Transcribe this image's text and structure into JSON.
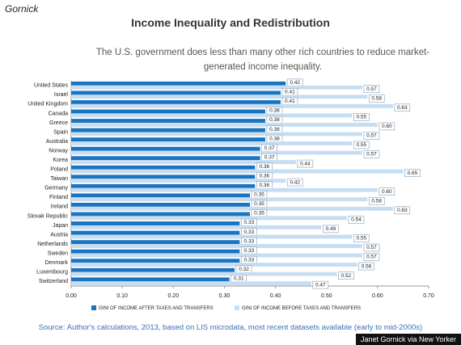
{
  "brand": "Gornick",
  "chart_data": {
    "type": "bar",
    "orientation": "horizontal",
    "title": "Income Inequality and Redistribution",
    "subtitle": "The U.S. government does less than many other rich countries to reduce market-generated income inequality.",
    "categories": [
      "United States",
      "Israel",
      "United Kingdom",
      "Canada",
      "Greece",
      "Spain",
      "Australia",
      "Norway",
      "Korea",
      "Poland",
      "Taiwan",
      "Germany",
      "Finland",
      "Ireland",
      "Slovak Republic",
      "Japan",
      "Austria",
      "Netherlands",
      "Sweden",
      "Denmark",
      "Luxembourg",
      "Switzerland"
    ],
    "series": [
      {
        "name": "GINI OF INCOME AFTER TAXES AND TRANSFERS",
        "color": "#1b74bf",
        "values": [
          0.42,
          0.41,
          0.41,
          0.38,
          0.38,
          0.38,
          0.38,
          0.37,
          0.37,
          0.36,
          0.36,
          0.36,
          0.35,
          0.35,
          0.35,
          0.33,
          0.33,
          0.33,
          0.33,
          0.33,
          0.32,
          0.31
        ],
        "value_labels": [
          "0.42",
          "0.41",
          "0.41",
          "0.38",
          "0.38",
          "0.38",
          "0.38",
          "0.37",
          "0.37",
          "0.36",
          "0.36",
          "0.36",
          "0.35",
          "0.35",
          "0.35",
          "0.33",
          "0.33",
          "0.33",
          "0.33",
          "0.33",
          "0.32",
          "0.31"
        ]
      },
      {
        "name": "GINI OF INCOME BEFORE TAXES AND TRANSFERS",
        "color": "#c7ddf1",
        "values": [
          0.57,
          0.58,
          0.63,
          0.55,
          0.6,
          0.57,
          0.55,
          0.57,
          0.44,
          0.65,
          0.42,
          0.6,
          0.58,
          0.63,
          0.54,
          0.49,
          0.55,
          0.57,
          0.57,
          0.56,
          0.52,
          0.47
        ],
        "value_labels": [
          "0.57",
          "0.58",
          "0.63",
          "0.55",
          "0.60",
          "0.57",
          "0.55",
          "0.57",
          "0.44",
          "0.65",
          "0.42",
          "0.60",
          "0.58",
          "0.63",
          "0.54",
          "0.49",
          "0.55",
          "0.57",
          "0.57",
          "0.56",
          "0.52",
          "0.47"
        ]
      }
    ],
    "xlim": [
      0,
      0.7
    ],
    "xticks": [
      {
        "value": 0,
        "label": "0.00"
      },
      {
        "value": 0.1,
        "label": "0.10"
      },
      {
        "value": 0.2,
        "label": "0.20"
      },
      {
        "value": 0.3,
        "label": "0.30"
      },
      {
        "value": 0.4,
        "label": "0.40"
      },
      {
        "value": 0.5,
        "label": "0.50"
      },
      {
        "value": 0.6,
        "label": "0.60"
      },
      {
        "value": 0.7,
        "label": "0.70"
      }
    ],
    "grid": false,
    "legend": "bottom"
  },
  "source": "Source: Author's calculations, 2013, based on LIS microdata, most recent datasets available (early to mid-2000s)",
  "credit": "Janet Gornick via New Yorker"
}
